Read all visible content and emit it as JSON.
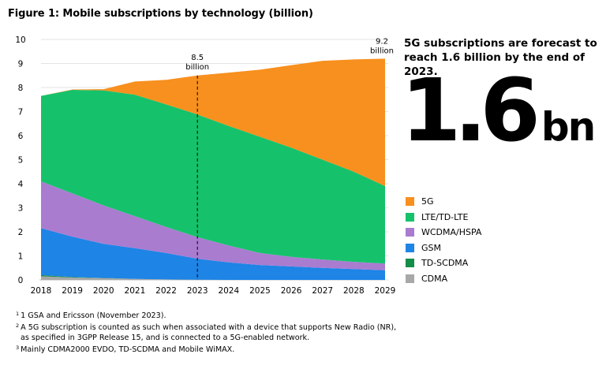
{
  "title": "Figure 1: Mobile subscriptions by technology (billion)",
  "callout": {
    "text": "5G subscriptions are forecast to reach 1.6 billion by the end of 2023.",
    "big_number": "1.6",
    "big_unit": "bn"
  },
  "colors": {
    "5G": "#f7901e",
    "LTE/TD-LTE": "#15c26b",
    "WCDMA/HSPA": "#a97cd0",
    "GSM": "#1e84e6",
    "TD-SCDMA": "#138d48",
    "CDMA": "#a8a8a8"
  },
  "chart_data": {
    "type": "area",
    "stacked": true,
    "title": "Figure 1: Mobile subscriptions by technology (billion)",
    "x": [
      "2018",
      "2019",
      "2020",
      "2021",
      "2022",
      "2023",
      "2024",
      "2025",
      "2026",
      "2027",
      "2028",
      "2029"
    ],
    "ylim": [
      0,
      10
    ],
    "yticks": [
      "0",
      "1",
      "2",
      "3",
      "4",
      "5",
      "6",
      "7",
      "8",
      "9",
      "10"
    ],
    "series": [
      {
        "name": "CDMA",
        "values": [
          0.15,
          0.1,
          0.07,
          0.04,
          0.02,
          0.01,
          0,
          0,
          0,
          0,
          0,
          0
        ]
      },
      {
        "name": "TD-SCDMA",
        "values": [
          0.05,
          0.02,
          0.01,
          0,
          0,
          0,
          0,
          0,
          0,
          0,
          0,
          0
        ]
      },
      {
        "name": "GSM",
        "values": [
          1.95,
          1.68,
          1.42,
          1.28,
          1.1,
          0.87,
          0.73,
          0.62,
          0.56,
          0.5,
          0.45,
          0.4
        ]
      },
      {
        "name": "WCDMA/HSPA",
        "values": [
          1.95,
          1.8,
          1.6,
          1.33,
          1.08,
          0.9,
          0.7,
          0.5,
          0.4,
          0.35,
          0.3,
          0.28
        ]
      },
      {
        "name": "LTE/TD-LTE",
        "values": [
          3.55,
          4.3,
          4.78,
          5.05,
          5.1,
          5.1,
          4.97,
          4.83,
          4.54,
          4.15,
          3.75,
          3.22
        ]
      },
      {
        "name": "5G",
        "values": [
          0,
          0.02,
          0.05,
          0.55,
          1.02,
          1.62,
          2.22,
          2.79,
          3.43,
          4.11,
          4.67,
          5.3
        ]
      }
    ],
    "annotations": [
      {
        "x": "2023",
        "value": "8.5",
        "unit": "billion",
        "style": "dashed-line"
      },
      {
        "x": "2029",
        "value": "9.2",
        "unit": "billion"
      }
    ],
    "legend": [
      "5G",
      "LTE/TD-LTE",
      "WCDMA/HSPA",
      "GSM",
      "TD-SCDMA",
      "CDMA"
    ],
    "legend_position": "right"
  },
  "footnotes": [
    {
      "mark": "1",
      "lines": [
        "1 GSA and Ericsson (November 2023)."
      ]
    },
    {
      "mark": "2",
      "lines": [
        "A 5G subscription is counted as such when associated with a device that supports New Radio (NR),",
        "as specified in 3GPP Release 15, and is connected to a 5G-enabled network."
      ]
    },
    {
      "mark": "3",
      "lines": [
        "Mainly CDMA2000 EVDO, TD-SCDMA and Mobile WiMAX."
      ]
    }
  ]
}
